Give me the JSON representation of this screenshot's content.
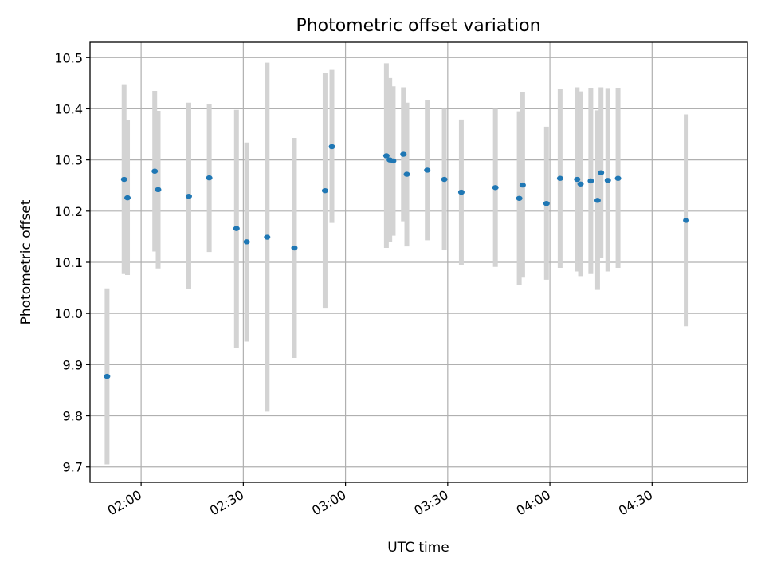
{
  "chart_data": {
    "type": "scatter",
    "title": "Photometric offset variation",
    "xlabel": "UTC time",
    "ylabel": "Photometric offset",
    "xlim": [
      "01:45",
      "04:58"
    ],
    "ylim": [
      9.67,
      10.53
    ],
    "xticks": [
      "02:00",
      "02:30",
      "03:00",
      "03:30",
      "04:00",
      "04:30"
    ],
    "yticks": [
      9.7,
      9.8,
      9.9,
      10.0,
      10.1,
      10.2,
      10.3,
      10.4,
      10.5
    ],
    "ytick_labels": [
      "9.7",
      "9.8",
      "9.9",
      "10.0",
      "10.1",
      "10.2",
      "10.3",
      "10.4",
      "10.5"
    ],
    "grid": true,
    "legend": "none",
    "marker_color": "#1f77b4",
    "errorbar_color": "#d3d3d3",
    "points": [
      {
        "x": "01:50",
        "y": 9.877,
        "lo": 9.705,
        "hi": 10.049
      },
      {
        "x": "01:55",
        "y": 10.262,
        "lo": 10.077,
        "hi": 10.448
      },
      {
        "x": "01:56",
        "y": 10.226,
        "lo": 10.075,
        "hi": 10.378
      },
      {
        "x": "02:04",
        "y": 10.278,
        "lo": 10.121,
        "hi": 10.435
      },
      {
        "x": "02:05",
        "y": 10.242,
        "lo": 10.088,
        "hi": 10.396
      },
      {
        "x": "02:14",
        "y": 10.229,
        "lo": 10.047,
        "hi": 10.412
      },
      {
        "x": "02:20",
        "y": 10.265,
        "lo": 10.12,
        "hi": 10.41
      },
      {
        "x": "02:28",
        "y": 10.166,
        "lo": 9.933,
        "hi": 10.398
      },
      {
        "x": "02:31",
        "y": 10.14,
        "lo": 9.945,
        "hi": 10.334
      },
      {
        "x": "02:37",
        "y": 10.149,
        "lo": 9.808,
        "hi": 10.49
      },
      {
        "x": "02:45",
        "y": 10.128,
        "lo": 9.913,
        "hi": 10.343
      },
      {
        "x": "02:54",
        "y": 10.24,
        "lo": 10.011,
        "hi": 10.47
      },
      {
        "x": "02:56",
        "y": 10.326,
        "lo": 10.177,
        "hi": 10.476
      },
      {
        "x": "03:12",
        "y": 10.308,
        "lo": 10.128,
        "hi": 10.489
      },
      {
        "x": "03:13",
        "y": 10.3,
        "lo": 10.14,
        "hi": 10.46
      },
      {
        "x": "03:14",
        "y": 10.298,
        "lo": 10.152,
        "hi": 10.444
      },
      {
        "x": "03:17",
        "y": 10.311,
        "lo": 10.18,
        "hi": 10.442
      },
      {
        "x": "03:18",
        "y": 10.272,
        "lo": 10.131,
        "hi": 10.412
      },
      {
        "x": "03:24",
        "y": 10.28,
        "lo": 10.143,
        "hi": 10.417
      },
      {
        "x": "03:29",
        "y": 10.262,
        "lo": 10.124,
        "hi": 10.4
      },
      {
        "x": "03:34",
        "y": 10.237,
        "lo": 10.095,
        "hi": 10.379
      },
      {
        "x": "03:44",
        "y": 10.246,
        "lo": 10.091,
        "hi": 10.4
      },
      {
        "x": "03:51",
        "y": 10.225,
        "lo": 10.055,
        "hi": 10.395
      },
      {
        "x": "03:52",
        "y": 10.251,
        "lo": 10.07,
        "hi": 10.433
      },
      {
        "x": "03:59",
        "y": 10.215,
        "lo": 10.066,
        "hi": 10.365
      },
      {
        "x": "04:03",
        "y": 10.264,
        "lo": 10.089,
        "hi": 10.438
      },
      {
        "x": "04:08",
        "y": 10.262,
        "lo": 10.082,
        "hi": 10.442
      },
      {
        "x": "04:09",
        "y": 10.253,
        "lo": 10.073,
        "hi": 10.434
      },
      {
        "x": "04:12",
        "y": 10.259,
        "lo": 10.077,
        "hi": 10.441
      },
      {
        "x": "04:14",
        "y": 10.221,
        "lo": 10.046,
        "hi": 10.397
      },
      {
        "x": "04:15",
        "y": 10.275,
        "lo": 10.108,
        "hi": 10.442
      },
      {
        "x": "04:17",
        "y": 10.26,
        "lo": 10.082,
        "hi": 10.439
      },
      {
        "x": "04:20",
        "y": 10.264,
        "lo": 10.089,
        "hi": 10.44
      },
      {
        "x": "04:40",
        "y": 10.182,
        "lo": 9.975,
        "hi": 10.389
      }
    ]
  }
}
